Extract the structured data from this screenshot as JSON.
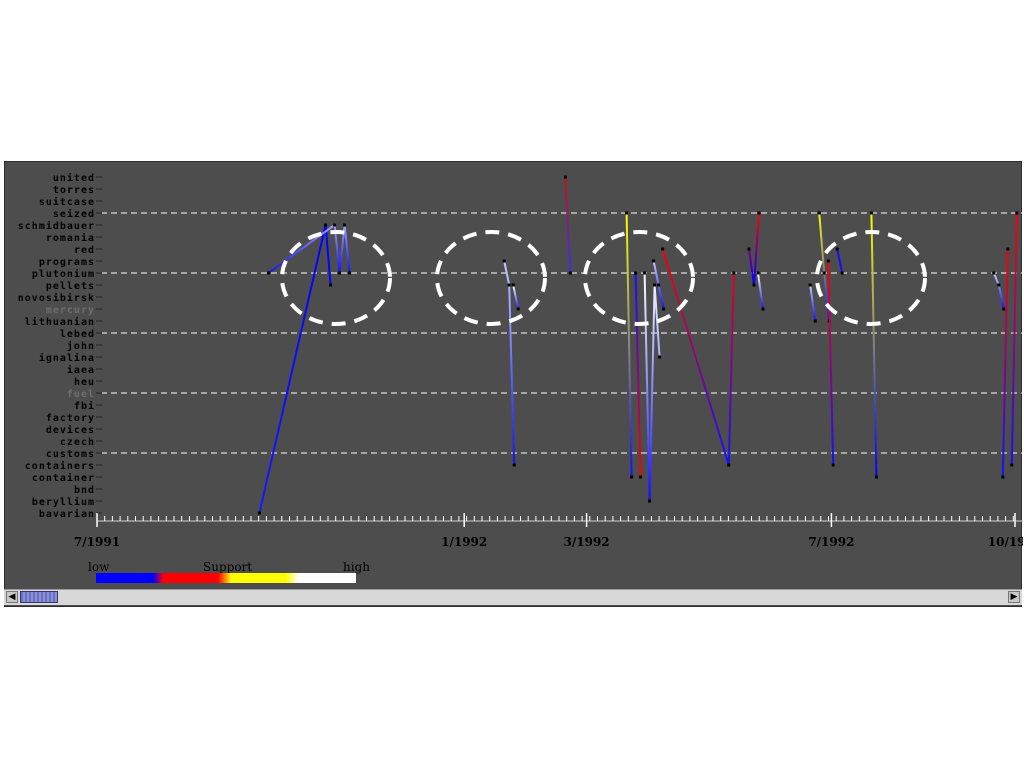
{
  "chart_data": {
    "type": "line",
    "title": "",
    "y_terms": [
      "united",
      "torres",
      "suitcase",
      "seized",
      "schmidbauer",
      "romania",
      "red",
      "programs",
      "plutonium",
      "pellets",
      "novosibirsk",
      "mercury",
      "lithuanian",
      "lebed",
      "john",
      "ignalina",
      "iaea",
      "heu",
      "fuel",
      "fbi",
      "factory",
      "devices",
      "czech",
      "customs",
      "containers",
      "container",
      "bnd",
      "beryllium",
      "bavarian"
    ],
    "dim_terms": [
      "mercury",
      "fuel"
    ],
    "x_ticks": [
      "7/1991",
      "1/1992",
      "3/1992",
      "7/1992",
      "10/1992"
    ],
    "x_range": [
      "7/1991",
      "10/1992"
    ],
    "grid": {
      "dashed_rows": [
        "seized",
        "plutonium",
        "lebed",
        "fuel",
        "customs"
      ]
    },
    "legend": {
      "left": "low",
      "middle": "Support",
      "right": "high",
      "colors": [
        "#0000ff",
        "#ff0000",
        "#ffff00",
        "#ffffff"
      ]
    },
    "highlight_circles": 5,
    "series": [
      {
        "points": [
          [
            "9/1991",
            "bavarian"
          ],
          [
            "10/1991",
            "schmidbauer"
          ],
          [
            "10/1991",
            "pellets"
          ]
        ],
        "colors": [
          "#0000ff",
          "#1818ff"
        ]
      },
      {
        "points": [
          [
            "9/1991",
            "plutonium"
          ],
          [
            "10/1991",
            "schmidbauer"
          ],
          [
            "10/1991",
            "plutonium"
          ],
          [
            "10/1991",
            "schmidbauer"
          ],
          [
            "10/1991",
            "plutonium"
          ]
        ],
        "colors": [
          "#a0a0ff",
          "#1010ff"
        ]
      },
      {
        "points": [
          [
            "1/1992",
            "programs"
          ],
          [
            "1/1992",
            "pellets"
          ],
          [
            "1/1992",
            "containers"
          ]
        ],
        "colors": [
          "#c8c8ff",
          "#1010ff"
        ]
      },
      {
        "points": [
          [
            "1/1992",
            "pellets"
          ],
          [
            "1/1992",
            "mercury"
          ]
        ],
        "colors": [
          "#ffffff",
          "#2020ff"
        ]
      },
      {
        "points": [
          [
            "2/1992",
            "united"
          ],
          [
            "2/1992",
            "plutonium"
          ]
        ],
        "colors": [
          "#cc1010",
          "#3030ff"
        ]
      },
      {
        "points": [
          [
            "3/1992",
            "seized"
          ],
          [
            "3/1992",
            "container"
          ]
        ],
        "colors": [
          "#ffff00",
          "#1010ff"
        ]
      },
      {
        "points": [
          [
            "3/1992",
            "plutonium"
          ],
          [
            "3/1992",
            "container"
          ]
        ],
        "colors": [
          "#1010ff",
          "#ff0000"
        ]
      },
      {
        "points": [
          [
            "3/1992",
            "plutonium"
          ],
          [
            "3/1992",
            "beryllium"
          ],
          [
            "3/1992",
            "pellets"
          ],
          [
            "3/1992",
            "ignalina"
          ]
        ],
        "colors": [
          "#ffffff",
          "#1010ff"
        ]
      },
      {
        "points": [
          [
            "3/1992",
            "programs"
          ],
          [
            "3/1992",
            "pellets"
          ],
          [
            "3/1992",
            "mercury"
          ]
        ],
        "colors": [
          "#c8c8ff",
          "#1010ff"
        ]
      },
      {
        "points": [
          [
            "3/1992",
            "red"
          ],
          [
            "4/1992",
            "containers"
          ],
          [
            "4/1992",
            "plutonium"
          ]
        ],
        "colors": [
          "#ff0000",
          "#1010ff"
        ]
      },
      {
        "points": [
          [
            "5/1992",
            "red"
          ],
          [
            "5/1992",
            "pellets"
          ],
          [
            "5/1992",
            "seized"
          ]
        ],
        "colors": [
          "#ff0000",
          "#0000ff"
        ]
      },
      {
        "points": [
          [
            "5/1992",
            "plutonium"
          ],
          [
            "5/1992",
            "mercury"
          ]
        ],
        "colors": [
          "#ffffff",
          "#1010ff"
        ]
      },
      {
        "points": [
          [
            "6/1992",
            "pellets"
          ],
          [
            "6/1992",
            "lithuanian"
          ]
        ],
        "colors": [
          "#c8c8ff",
          "#1010ff"
        ]
      },
      {
        "points": [
          [
            "6/1992",
            "seized"
          ],
          [
            "6/1992",
            "plutonium"
          ],
          [
            "6/1992",
            "lithuanian"
          ]
        ],
        "colors": [
          "#ffff00",
          "#1010ff"
        ]
      },
      {
        "points": [
          [
            "6/1992",
            "programs"
          ],
          [
            "6/1992",
            "containers"
          ]
        ],
        "colors": [
          "#ff0000",
          "#1010ff"
        ]
      },
      {
        "points": [
          [
            "6/1992",
            "red"
          ],
          [
            "6/1992",
            "plutonium"
          ]
        ],
        "colors": [
          "#1010ff",
          "#1010ff"
        ]
      },
      {
        "points": [
          [
            "7/1992",
            "seized"
          ],
          [
            "7/1992",
            "container"
          ]
        ],
        "colors": [
          "#ffff00",
          "#0000ff"
        ]
      },
      {
        "points": [
          [
            "9/1992",
            "plutonium"
          ],
          [
            "9/1992",
            "pellets"
          ],
          [
            "9/1992",
            "mercury"
          ]
        ],
        "colors": [
          "#c8c8ff",
          "#1010ff"
        ]
      },
      {
        "points": [
          [
            "9/1992",
            "container"
          ],
          [
            "9/1992",
            "red"
          ]
        ],
        "colors": [
          "#ff0000",
          "#1010ff"
        ]
      },
      {
        "points": [
          [
            "9/1992",
            "containers"
          ],
          [
            "9/1992",
            "seized"
          ]
        ],
        "colors": [
          "#ff0000",
          "#1010ff"
        ]
      }
    ]
  }
}
